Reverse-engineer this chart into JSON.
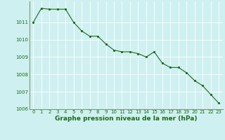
{
  "x": [
    0,
    1,
    2,
    3,
    4,
    5,
    6,
    7,
    8,
    9,
    10,
    11,
    12,
    13,
    14,
    15,
    16,
    17,
    18,
    19,
    20,
    21,
    22,
    23
  ],
  "y": [
    1011.0,
    1011.8,
    1011.75,
    1011.75,
    1011.75,
    1011.0,
    1010.5,
    1010.2,
    1010.2,
    1009.75,
    1009.4,
    1009.3,
    1009.3,
    1009.2,
    1009.0,
    1009.3,
    1008.65,
    1008.4,
    1008.4,
    1008.1,
    1007.65,
    1007.35,
    1006.85,
    1006.35
  ],
  "line_color": "#1a6b1a",
  "marker_color": "#1a6b1a",
  "bg_color": "#cff0f0",
  "grid_color": "#c0e0e0",
  "xlabel": "Graphe pression niveau de la mer (hPa)",
  "xlabel_color": "#1a6b1a",
  "tick_color": "#1a6b1a",
  "spine_color": "#7a9a7a",
  "ylim": [
    1006.0,
    1012.2
  ],
  "xlim": [
    -0.5,
    23.5
  ],
  "yticks": [
    1006,
    1007,
    1008,
    1009,
    1010,
    1011
  ],
  "xticks": [
    0,
    1,
    2,
    3,
    4,
    5,
    6,
    7,
    8,
    9,
    10,
    11,
    12,
    13,
    14,
    15,
    16,
    17,
    18,
    19,
    20,
    21,
    22,
    23
  ],
  "tick_fontsize": 5.0,
  "xlabel_fontsize": 6.5
}
